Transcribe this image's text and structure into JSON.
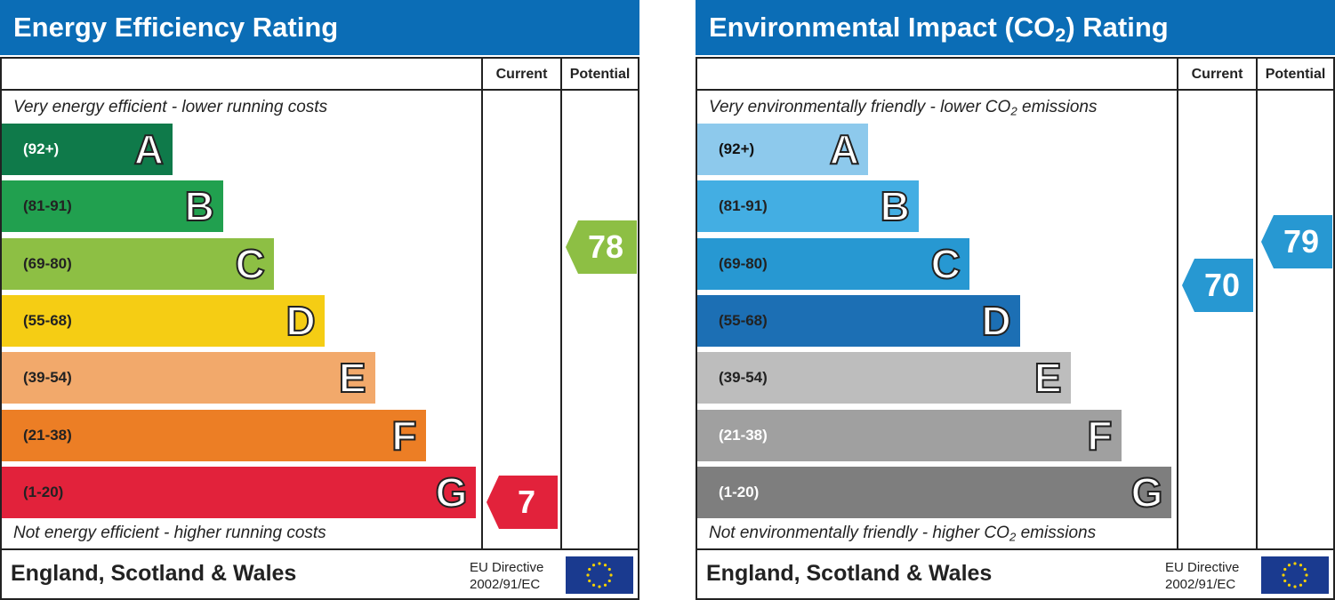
{
  "chart_data": [
    {
      "type": "bar",
      "title_prefix": "Energy Efficiency Rating",
      "title_sub": "",
      "title_suffix": "",
      "columns": [
        "Current",
        "Potential"
      ],
      "top_caption": "Very energy efficient - lower running costs",
      "bottom_caption": "Not energy efficient - higher running costs",
      "bands": [
        {
          "letter": "A",
          "range": "(92+)",
          "color": "#0f7a4a",
          "text_color": "#ffffff"
        },
        {
          "letter": "B",
          "range": "(81-91)",
          "color": "#21a04f",
          "text_color": "#222222"
        },
        {
          "letter": "C",
          "range": "(69-80)",
          "color": "#8dbf44",
          "text_color": "#222222"
        },
        {
          "letter": "D",
          "range": "(55-68)",
          "color": "#f5cd14",
          "text_color": "#222222"
        },
        {
          "letter": "E",
          "range": "(39-54)",
          "color": "#f2a96b",
          "text_color": "#222222"
        },
        {
          "letter": "F",
          "range": "(21-38)",
          "color": "#ec7e25",
          "text_color": "#222222"
        },
        {
          "letter": "G",
          "range": "(1-20)",
          "color": "#e2223b",
          "text_color": "#222222"
        }
      ],
      "current": {
        "value": 7,
        "band": "G",
        "color": "#e2223b"
      },
      "potential": {
        "value": 78,
        "band": "C",
        "color": "#8dbf44"
      },
      "footer": {
        "country": "England, Scotland & Wales",
        "directive_line1": "EU Directive",
        "directive_line2": "2002/91/EC"
      }
    },
    {
      "type": "bar",
      "title_prefix": "Environmental Impact (CO",
      "title_sub": "2",
      "title_suffix": ") Rating",
      "columns": [
        "Current",
        "Potential"
      ],
      "top_caption_prefix": "Very environmentally friendly - lower CO",
      "top_caption_sub": "2",
      "top_caption_suffix": " emissions",
      "bottom_caption_prefix": "Not environmentally friendly - higher CO",
      "bottom_caption_sub": "2",
      "bottom_caption_suffix": " emissions",
      "bands": [
        {
          "letter": "A",
          "range": "(92+)",
          "color": "#8dc9ec",
          "text_color": "#111111"
        },
        {
          "letter": "B",
          "range": "(81-91)",
          "color": "#43aee3",
          "text_color": "#222222"
        },
        {
          "letter": "C",
          "range": "(69-80)",
          "color": "#2798d2",
          "text_color": "#222222"
        },
        {
          "letter": "D",
          "range": "(55-68)",
          "color": "#1c6fb4",
          "text_color": "#222222"
        },
        {
          "letter": "E",
          "range": "(39-54)",
          "color": "#bdbdbd",
          "text_color": "#222222"
        },
        {
          "letter": "F",
          "range": "(21-38)",
          "color": "#a0a0a0",
          "text_color": "#ffffff"
        },
        {
          "letter": "G",
          "range": "(1-20)",
          "color": "#7e7e7e",
          "text_color": "#ffffff"
        }
      ],
      "current": {
        "value": 70,
        "band": "C",
        "color": "#2798d2"
      },
      "potential": {
        "value": 79,
        "band": "C",
        "color": "#2798d2"
      },
      "footer": {
        "country": "England, Scotland & Wales",
        "directive_line1": "EU Directive",
        "directive_line2": "2002/91/EC"
      }
    }
  ]
}
